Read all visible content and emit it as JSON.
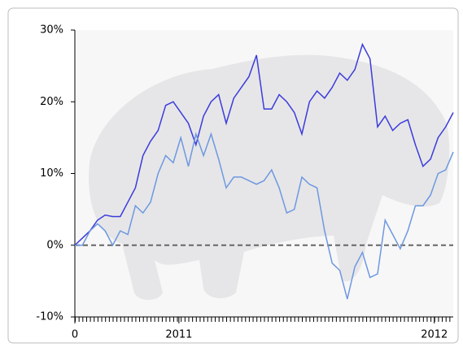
{
  "chart_data": {
    "type": "line",
    "x": [
      0,
      2,
      4,
      6,
      8,
      10,
      12,
      14,
      16,
      18,
      20,
      22,
      24,
      26,
      28,
      30,
      32,
      34,
      36,
      38,
      40,
      42,
      44,
      46,
      48,
      50,
      52,
      54,
      56,
      58,
      60,
      62,
      64,
      66,
      68,
      70,
      72,
      74,
      76,
      78,
      80,
      82,
      84,
      86,
      88,
      90,
      92,
      94,
      96,
      98,
      100
    ],
    "series": [
      {
        "color": "#3b3bdc",
        "values": [
          0,
          1,
          2,
          3.5,
          4.2,
          4,
          4,
          6,
          8,
          12.5,
          14.5,
          16,
          19.5,
          20,
          18.5,
          17,
          14,
          18,
          20,
          21,
          17,
          20.5,
          22,
          23.5,
          26.5,
          19,
          19,
          21,
          20,
          18.5,
          15.5,
          20,
          21.5,
          20.5,
          22,
          24,
          23,
          24.5,
          28,
          26,
          16.5,
          18,
          16,
          17,
          17.5,
          14,
          11,
          12,
          15,
          16.5,
          18.5
        ]
      },
      {
        "color": "#6e98e0",
        "values": [
          0,
          0,
          2,
          3,
          2,
          0,
          2,
          1.5,
          5.5,
          4.5,
          6,
          10,
          12.5,
          11.5,
          15,
          11,
          15.5,
          12.5,
          15.5,
          12,
          8,
          9.5,
          9.5,
          9,
          8.5,
          9,
          10.5,
          8,
          4.5,
          5,
          9.5,
          8.5,
          8,
          2,
          -2.5,
          -3.5,
          -7.5,
          -3,
          -1,
          -4.5,
          -4,
          3.5,
          1.5,
          -0.5,
          2,
          5.5,
          5.5,
          7,
          10,
          10.5,
          13
        ]
      }
    ],
    "xlim": [
      0,
      100
    ],
    "xticks": [
      0,
      {
        "value": 27.5,
        "label": "2011"
      },
      {
        "value": 95,
        "label": "2012"
      }
    ],
    "ylim": [
      -10,
      30
    ],
    "yticks": [
      {
        "value": -10,
        "label": "-10%"
      },
      {
        "value": 0,
        "label": "0%"
      },
      {
        "value": 10,
        "label": "10%"
      },
      {
        "value": 20,
        "label": "20%"
      },
      {
        "value": 30,
        "label": "30%"
      }
    ]
  }
}
